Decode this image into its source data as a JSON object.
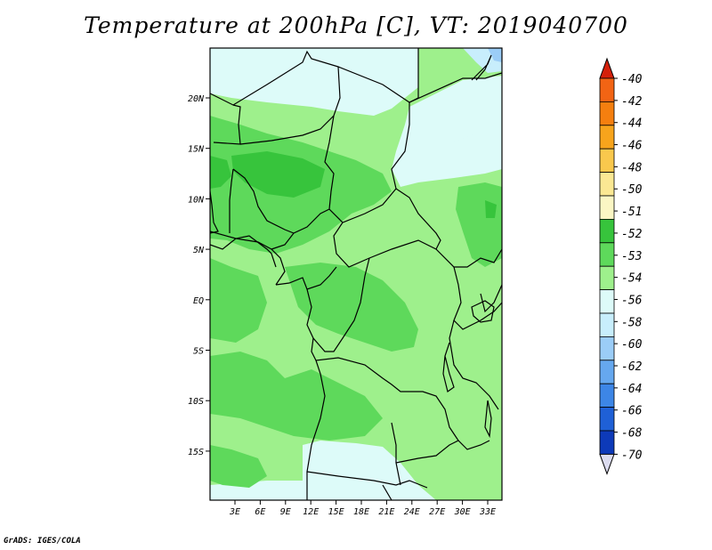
{
  "title": "Temperature at 200hPa [C], VT: 2019040700",
  "credit": "GrADS: IGES/COLA",
  "map": {
    "lon_ticks": [
      "3E",
      "6E",
      "9E",
      "12E",
      "15E",
      "18E",
      "21E",
      "24E",
      "27E",
      "30E",
      "33E"
    ],
    "lat_ticks": [
      "20N",
      "15N",
      "10N",
      "5N",
      "EQ",
      "5S",
      "10S",
      "15S"
    ]
  },
  "colorbar": {
    "levels": [
      "-40",
      "-42",
      "-44",
      "-46",
      "-48",
      "-50",
      "-51",
      "-52",
      "-53",
      "-54",
      "-56",
      "-58",
      "-60",
      "-62",
      "-64",
      "-66",
      "-68",
      "-70"
    ],
    "colors": [
      "#f4471f",
      "#f26414",
      "#f57f0f",
      "#f7a41c",
      "#f9c84d",
      "#fbe893",
      "#fbf6c4",
      "#37c43c",
      "#5ed95b",
      "#9ef08c",
      "#ddfbf9",
      "#c8eefc",
      "#9bcdf7",
      "#66a8ef",
      "#3d86e6",
      "#1f60d6",
      "#0d3ab9",
      "#06188f"
    ],
    "over_color": "#d4200a",
    "under_color": "#dcdcf0"
  }
}
